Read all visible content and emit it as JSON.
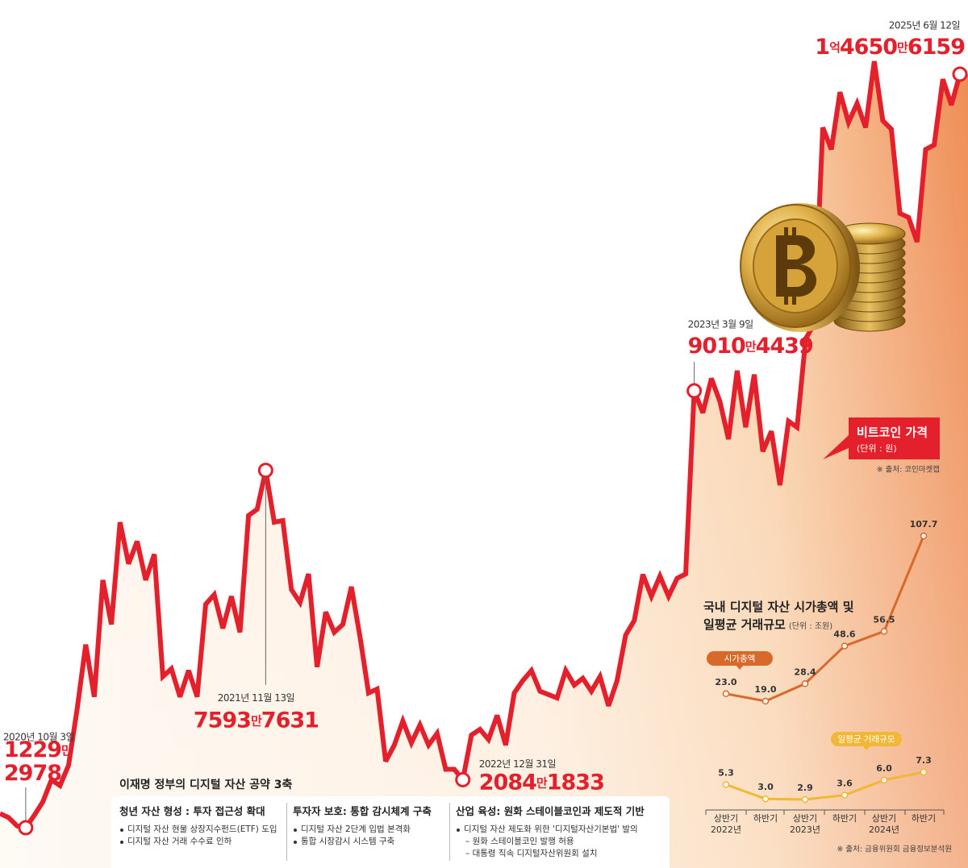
{
  "chart_data": [
    {
      "type": "line",
      "unit": "(단위 : 원)",
      "source": "※ 출처: 코인마켓캡",
      "categories": [
        null,
        null,
        null,
        "2020년 10월 3일",
        null,
        null,
        null,
        null,
        null,
        null,
        null,
        null,
        null,
        null,
        null,
        null,
        null,
        null,
        null,
        null,
        null,
        null,
        null,
        null,
        null,
        null,
        null,
        null,
        null,
        null,
        null,
        "2021년 11월 13일",
        null,
        null,
        null,
        null,
        null,
        null,
        null,
        null,
        null,
        null,
        null,
        null,
        null,
        null,
        null,
        null,
        null,
        null,
        null,
        null,
        null,
        null,
        "2022년 12월 31일",
        null,
        null,
        null,
        null,
        null,
        null,
        null,
        null,
        null,
        null,
        null,
        null,
        null,
        null,
        null,
        null,
        null,
        null,
        null,
        null,
        null,
        null,
        null,
        null,
        null,
        null,
        "2023년 3월 9일",
        null,
        null,
        null,
        null,
        null,
        null,
        null,
        null,
        null,
        null,
        null,
        null,
        null,
        null,
        null,
        null,
        null,
        null,
        null,
        null,
        null,
        null,
        null,
        null,
        null,
        null,
        null,
        null,
        null,
        null,
        "2025년 6월 12일"
      ],
      "series": [
        {
          "name": "비트코인 가격",
          "color": "#e3202b",
          "values": [
            14800000,
            14100000,
            12600000,
            12292978,
            14500000,
            16900000,
            20800000,
            19800000,
            23400000,
            33400000,
            44900000,
            35600000,
            56400000,
            48500000,
            66700000,
            59300000,
            63300000,
            56400000,
            61000000,
            39200000,
            40600000,
            35600000,
            40300000,
            35600000,
            52100000,
            53800000,
            47800000,
            53500000,
            47100000,
            67900000,
            69000000,
            75937631,
            66700000,
            67000000,
            54700000,
            52400000,
            57500000,
            40900000,
            50700000,
            47100000,
            48500000,
            55200000,
            46300000,
            36300000,
            37000000,
            24100000,
            27000000,
            31300000,
            27400000,
            30600000,
            27000000,
            29100000,
            22700000,
            22700000,
            20841833,
            28800000,
            29800000,
            28000000,
            32300000,
            27000000,
            36300000,
            38500000,
            40300000,
            36600000,
            36000000,
            35400000,
            40300000,
            37700000,
            38900000,
            36600000,
            39200000,
            34000000,
            38500000,
            46600000,
            49200000,
            57400000,
            53500000,
            57100000,
            53500000,
            56700000,
            57500000,
            90104439,
            86200000,
            92300000,
            88200000,
            81500000,
            93700000,
            83600000,
            93000000,
            79300000,
            82900000,
            73300000,
            84700000,
            83600000,
            99400000,
            102000000,
            137000000,
            133100000,
            143300000,
            137900000,
            141300000,
            137000000,
            148800000,
            138200000,
            136700000,
            121700000,
            121000000,
            116600000,
            133100000,
            133900000,
            145600000,
            141000000,
            146506159
          ],
          "value_labels": [
            null,
            null,
            null,
            "1229만2978",
            null,
            null,
            null,
            null,
            null,
            null,
            null,
            null,
            null,
            null,
            null,
            null,
            null,
            null,
            null,
            null,
            null,
            null,
            null,
            null,
            null,
            null,
            null,
            null,
            null,
            null,
            null,
            "7593만7631",
            null,
            null,
            null,
            null,
            null,
            null,
            null,
            null,
            null,
            null,
            null,
            null,
            null,
            null,
            null,
            null,
            null,
            null,
            null,
            null,
            null,
            null,
            "2084만1833",
            null,
            null,
            null,
            null,
            null,
            null,
            null,
            null,
            null,
            null,
            null,
            null,
            null,
            null,
            null,
            null,
            null,
            null,
            null,
            null,
            null,
            null,
            null,
            null,
            null,
            null,
            "9010만4439",
            null,
            null,
            null,
            null,
            null,
            null,
            null,
            null,
            null,
            null,
            null,
            null,
            null,
            null,
            null,
            null,
            null,
            null,
            null,
            null,
            null,
            null,
            null,
            null,
            null,
            null,
            null,
            null,
            null,
            null,
            "1억4650만6159"
          ]
        }
      ]
    },
    {
      "type": "line",
      "title": "국내 디지털 자산 시가총액 및\n일평균 거래규모",
      "unit": "(단위 : 조원)",
      "source": "※ 출처: 금융위원회 금융정보분석원",
      "categories": [
        "상반기\n2022년",
        "하반기",
        "상반기\n2023년",
        "하반기",
        "상반기\n2024년",
        "하반기"
      ],
      "series": [
        {
          "name": "시가총액",
          "color": "#d8692b",
          "values": [
            23.0,
            19.0,
            28.4,
            48.6,
            56.5,
            107.7
          ],
          "value_labels": [
            "23.0",
            "19.0",
            "28.4",
            "48.6",
            "56.5",
            "107.7"
          ]
        },
        {
          "name": "일평균 거래규모",
          "color": "#f2b736",
          "values": [
            5.3,
            3.0,
            2.9,
            3.6,
            6.0,
            7.3
          ],
          "value_labels": [
            "5.3",
            "3.0",
            "2.9",
            "3.6",
            "6.0",
            "7.3"
          ]
        }
      ]
    }
  ],
  "policy": {
    "title": "이재명 정부의 디지털 자산 공약 3축",
    "columns": [
      {
        "heading": "청년 자산 형성 : 투자 접근성 확대",
        "items": [
          {
            "text": "디지털 자산 현물 상장지수펀드(ETF) 도입"
          },
          {
            "text": "디지털 자산 거래 수수료 인하"
          }
        ]
      },
      {
        "heading": "투자자 보호: 통합 감시체계 구축",
        "items": [
          {
            "text": "디지털 자산 2단계 입법 본격화"
          },
          {
            "text": "통합 시장감시 시스템 구축"
          }
        ]
      },
      {
        "heading": "산업 육성: 원화 스테이블코인과 제도적 기반",
        "items": [
          {
            "text": "디지털 자산 제도화 위한 '디지털자산기본법' 발의",
            "subitems": [
              "– 원화 스테이블코인 발행 허용",
              "– 대통령 직속 디지털자산위원회 설치"
            ]
          }
        ]
      }
    ]
  }
}
